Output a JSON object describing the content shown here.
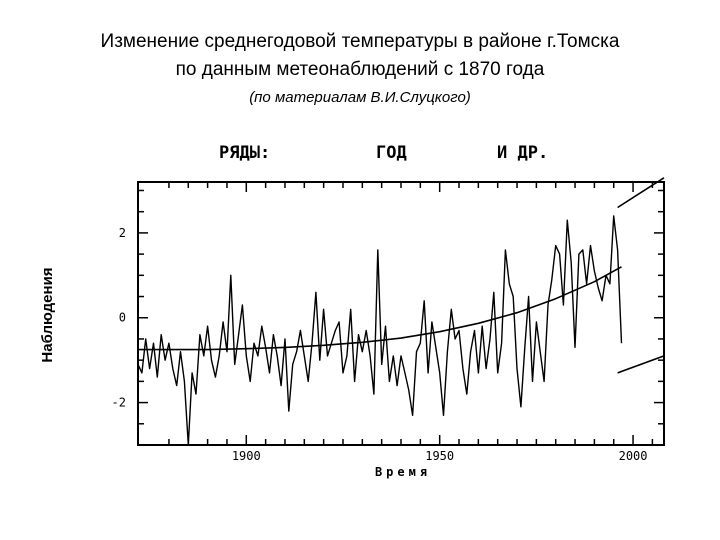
{
  "header": {
    "title_line1": "Изменение среднегодовой температуры в районе г.Томска",
    "title_line2": "по данным метеонаблюдений с 1870 года",
    "subtitle": "(по материалам В.И.Слуцкого)"
  },
  "chart_data": {
    "type": "line",
    "plot_heading": {
      "series_label": "РЯДЫ:",
      "s1": "ГОД",
      "s2": "И ДР."
    },
    "xlabel": "Время",
    "ylabel": "Наблюдения",
    "xlim": [
      1872,
      2008
    ],
    "ylim": [
      -3,
      3.2
    ],
    "x_ticks": [
      1900,
      1950,
      2000
    ],
    "y_ticks": [
      2,
      0,
      -2
    ],
    "grid": false,
    "series": [
      {
        "values_x": [
          1872,
          1873,
          1874,
          1875,
          1876,
          1877,
          1878,
          1879,
          1880,
          1881,
          1882,
          1883,
          1884,
          1885,
          1886,
          1887,
          1888,
          1889,
          1890,
          1891,
          1892,
          1893,
          1894,
          1895,
          1896,
          1897,
          1898,
          1899,
          1900,
          1901,
          1902,
          1903,
          1904,
          1905,
          1906,
          1907,
          1908,
          1909,
          1910,
          1911,
          1912,
          1913,
          1914,
          1915,
          1916,
          1917,
          1918,
          1919,
          1920,
          1921,
          1922,
          1923,
          1924,
          1925,
          1926,
          1927,
          1928,
          1929,
          1930,
          1931,
          1932,
          1933,
          1934,
          1935,
          1936,
          1937,
          1938,
          1939,
          1940,
          1941,
          1942,
          1943,
          1944,
          1945,
          1946,
          1947,
          1948,
          1949,
          1950,
          1951,
          1952,
          1953,
          1954,
          1955,
          1956,
          1957,
          1958,
          1959,
          1960,
          1961,
          1962,
          1963,
          1964,
          1965,
          1966,
          1967,
          1968,
          1969,
          1970,
          1971,
          1972,
          1973,
          1974,
          1975,
          1976,
          1977,
          1978,
          1979,
          1980,
          1981,
          1982,
          1983,
          1984,
          1985,
          1986,
          1987,
          1988,
          1989,
          1990,
          1991,
          1992,
          1993,
          1994,
          1995,
          1996,
          1997
        ],
        "values_y": [
          -1.1,
          -1.3,
          -0.5,
          -1.2,
          -0.6,
          -1.4,
          -0.4,
          -1.0,
          -0.6,
          -1.2,
          -1.6,
          -0.8,
          -1.5,
          -3.0,
          -1.3,
          -1.8,
          -0.4,
          -0.9,
          -0.2,
          -1.0,
          -1.4,
          -0.9,
          -0.1,
          -0.8,
          1.0,
          -1.1,
          -0.4,
          0.3,
          -0.9,
          -1.5,
          -0.6,
          -0.9,
          -0.2,
          -0.7,
          -1.3,
          -0.4,
          -0.9,
          -1.6,
          -0.5,
          -2.2,
          -1.1,
          -0.8,
          -0.3,
          -0.9,
          -1.5,
          -0.6,
          0.6,
          -1.0,
          0.2,
          -0.9,
          -0.6,
          -0.3,
          -0.1,
          -1.3,
          -0.9,
          0.2,
          -1.5,
          -0.4,
          -0.8,
          -0.3,
          -0.9,
          -1.8,
          1.6,
          -1.1,
          -0.2,
          -1.5,
          -0.9,
          -1.6,
          -0.9,
          -1.3,
          -1.7,
          -2.3,
          -0.8,
          -0.6,
          0.4,
          -1.3,
          -0.1,
          -0.7,
          -1.3,
          -2.3,
          -0.8,
          0.2,
          -0.5,
          -0.3,
          -1.2,
          -1.8,
          -0.8,
          -0.3,
          -1.3,
          -0.2,
          -1.2,
          -0.5,
          0.6,
          -1.3,
          -0.6,
          1.6,
          0.8,
          0.5,
          -1.2,
          -2.1,
          -0.7,
          0.5,
          -1.5,
          -0.1,
          -0.8,
          -1.5,
          0.3,
          0.9,
          1.7,
          1.5,
          0.3,
          2.3,
          1.3,
          -0.7,
          1.5,
          1.6,
          0.8,
          1.7,
          1.1,
          0.7,
          0.4,
          1.0,
          0.8,
          2.4,
          1.6,
          -0.6
        ]
      },
      {
        "values_x": [
          1872,
          1880,
          1890,
          1900,
          1910,
          1920,
          1930,
          1940,
          1950,
          1960,
          1970,
          1980,
          1990,
          1997
        ],
        "values_y": [
          -0.75,
          -0.75,
          -0.75,
          -0.73,
          -0.7,
          -0.65,
          -0.58,
          -0.48,
          -0.33,
          -0.13,
          0.12,
          0.45,
          0.85,
          1.2
        ]
      },
      {
        "values_x": [
          1996,
          2008
        ],
        "values_y": [
          2.6,
          3.3
        ]
      },
      {
        "values_x": [
          1996,
          2008
        ],
        "values_y": [
          -1.3,
          -0.9
        ]
      }
    ]
  }
}
